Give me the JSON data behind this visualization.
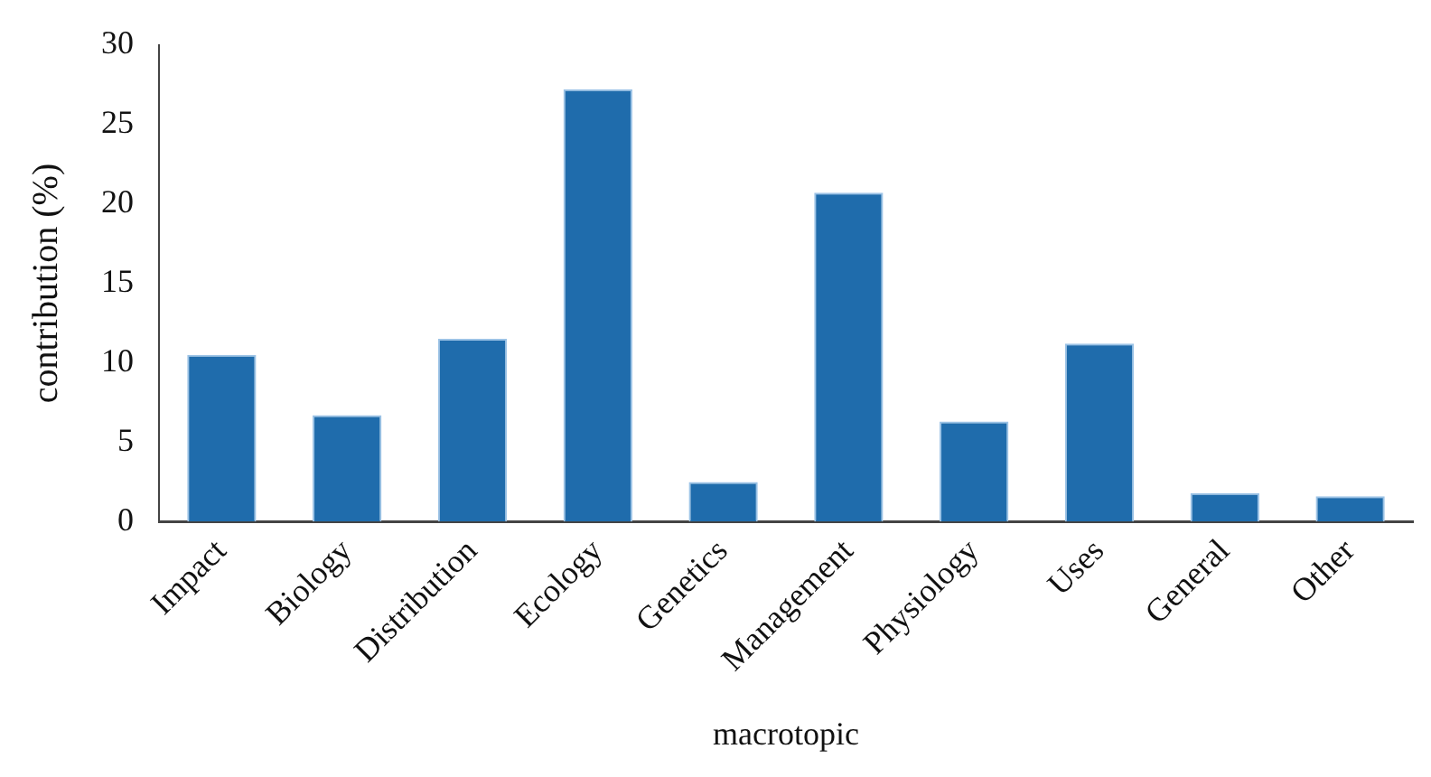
{
  "chart_data": {
    "type": "bar",
    "xlabel": "macrotopic",
    "ylabel": "contribution (%)",
    "categories": [
      "Impact",
      "Biology",
      "Distribution",
      "Ecology",
      "Genetics",
      "Management",
      "Physiology",
      "Uses",
      "General",
      "Other"
    ],
    "values": [
      10.5,
      6.7,
      11.5,
      27.2,
      2.5,
      20.7,
      6.3,
      11.2,
      1.8,
      1.6
    ],
    "color": "#1f6cac",
    "ylim": [
      0,
      30
    ],
    "yticks": [
      0,
      5,
      10,
      15,
      20,
      25,
      30
    ],
    "grid": false,
    "legend": false
  }
}
